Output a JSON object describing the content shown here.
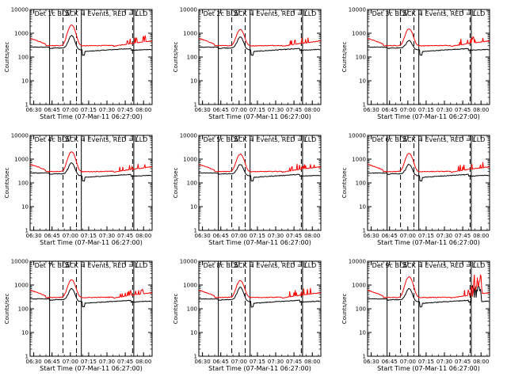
{
  "chart_data": {
    "type": "line",
    "layout": "3x3 grid",
    "y_scale": "log",
    "ylim": [
      1,
      10000
    ],
    "y_ticks": [
      "1",
      "10",
      "100",
      "1000",
      "10000"
    ],
    "ylabel": "Counts/sec",
    "xlabel": "Start Time (07-Mar-11 06:27:00)",
    "x_ticks": [
      "06:30",
      "06:45",
      "07:00",
      "07:15",
      "07:30",
      "07:45",
      "08:00"
    ],
    "xlim": [
      "06:27",
      "08:07"
    ],
    "markers": [
      {
        "time": "06:43",
        "style": "solid",
        "label": ""
      },
      {
        "time": "06:54",
        "style": "dashed",
        "label": "S"
      },
      {
        "time": "07:05",
        "style": "dashed",
        "label": ""
      },
      {
        "time": "07:09",
        "style": "solid",
        "label": "I"
      },
      {
        "time": "07:51",
        "style": "dashed",
        "label": "L"
      },
      {
        "time": "07:52",
        "style": "solid",
        "label": ""
      }
    ],
    "series_colors": {
      "events": "#000000",
      "lld": "#ff0000"
    },
    "panels": [
      {
        "title": "Det 1c BLACK = Events, RED = LLD",
        "lld_peak": 2200,
        "events_peak": 800,
        "noisy_events": false
      },
      {
        "title": "Det 2c BLACK = Events, RED = LLD",
        "lld_peak": 1400,
        "events_peak": 700,
        "noisy_events": false
      },
      {
        "title": "Det 3c BLACK = Events, RED = LLD",
        "lld_peak": 1500,
        "events_peak": 500,
        "noisy_events": false
      },
      {
        "title": "Det 4c BLACK = Events, RED = LLD",
        "lld_peak": 2000,
        "events_peak": 700,
        "noisy_events": false
      },
      {
        "title": "Det 5c BLACK = Events, RED = LLD",
        "lld_peak": 1600,
        "events_peak": 600,
        "noisy_events": false
      },
      {
        "title": "Det 6c BLACK = Events, RED = LLD",
        "lld_peak": 1700,
        "events_peak": 600,
        "noisy_events": false
      },
      {
        "title": "Det 7c BLACK = Events, RED = LLD",
        "lld_peak": 1600,
        "events_peak": 700,
        "noisy_events": false
      },
      {
        "title": "Det 8c BLACK = Events, RED = LLD",
        "lld_peak": 1500,
        "events_peak": 800,
        "noisy_events": false
      },
      {
        "title": "Det 9c BLACK = Events, RED = LLD",
        "lld_peak": 2200,
        "events_peak": 700,
        "noisy_events": true
      }
    ]
  }
}
